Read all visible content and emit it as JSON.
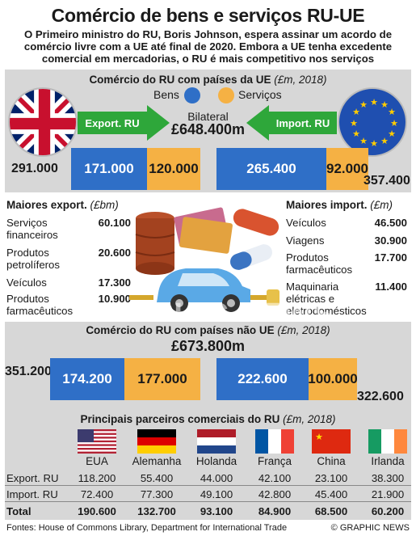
{
  "header": {
    "title": "Comércio de bens e serviços RU-UE",
    "subtitle_lines": [
      "O Primeiro ministro do RU, Boris Johnson, espera assinar um acordo de",
      "comércio livre com a UE até final de 2020. Embora a UE tenha excedente",
      "comercial em mercadorias, o RU é mais competitivo nos serviços"
    ]
  },
  "eu_trade": {
    "heading": "Comércio do RU com países da UE",
    "unit": "(£m, 2018)",
    "legend": {
      "goods": "Bens",
      "services": "Serviços",
      "goods_color": "#2f6fc7",
      "services_color": "#f5b144"
    },
    "export_label": "Export. RU",
    "import_label": "Import. RU",
    "bilateral_label": "Bilateral",
    "bilateral_total": "£648.400m",
    "export": {
      "total": "291.000",
      "goods": "171.000",
      "services": "120.000"
    },
    "import": {
      "total": "357.400",
      "goods": "265.400",
      "services": "92.000"
    }
  },
  "top_exports": {
    "heading": "Maiores export.",
    "unit": "(£bm)",
    "items": [
      {
        "name": "Serviços financeiros",
        "value": "60.100"
      },
      {
        "name": "Produtos petrolíferos",
        "value": "20.600"
      },
      {
        "name": "Veículos",
        "value": "17.300"
      },
      {
        "name": "Produtos farmacêuticos",
        "value": "10.900"
      }
    ]
  },
  "top_imports": {
    "heading": "Maiores import.",
    "unit": "(£m)",
    "items": [
      {
        "name": "Veículos",
        "value": "46.500"
      },
      {
        "name": "Viagens",
        "value": "30.900"
      },
      {
        "name": "Produtos farmacêuticos",
        "value": "17.700"
      },
      {
        "name": "Maquinaria elétricas e eletrodomésticos",
        "value": "11.400"
      }
    ]
  },
  "non_eu_trade": {
    "heading": "Comércio do RU com países não UE",
    "unit": "(£m, 2018)",
    "bilateral_total": "£673.800m",
    "export": {
      "total": "351.200",
      "goods": "174.200",
      "services": "177.000"
    },
    "import": {
      "total": "322.600",
      "goods": "222.600",
      "services": "100.000"
    }
  },
  "partners": {
    "heading": "Principais parceiros comerciais do RU",
    "unit": "(£m, 2018)",
    "row_labels": {
      "export": "Export. RU",
      "import": "Import. RU",
      "total": "Total"
    },
    "countries": [
      {
        "name": "EUA",
        "flag": "usa-flag",
        "export": "118.200",
        "import": "72.400",
        "total": "190.600"
      },
      {
        "name": "Alemanha",
        "flag": "germany-flag",
        "export": "55.400",
        "import": "77.300",
        "total": "132.700"
      },
      {
        "name": "Holanda",
        "flag": "netherlands-flag",
        "export": "44.000",
        "import": "49.100",
        "total": "93.100"
      },
      {
        "name": "França",
        "flag": "france-flag",
        "export": "42.100",
        "import": "42.800",
        "total": "84.900"
      },
      {
        "name": "China",
        "flag": "china-flag",
        "export": "23.100",
        "import": "45.400",
        "total": "68.500"
      },
      {
        "name": "Irlanda",
        "flag": "ireland-flag",
        "export": "38.300",
        "import": "21.900",
        "total": "60.200"
      }
    ]
  },
  "footer": {
    "sources": "Fontes: House of Commons Library, Department for International Trade",
    "brand": "© GRAPHIC NEWS"
  },
  "watermark": "GRAPHIC NEWS"
}
